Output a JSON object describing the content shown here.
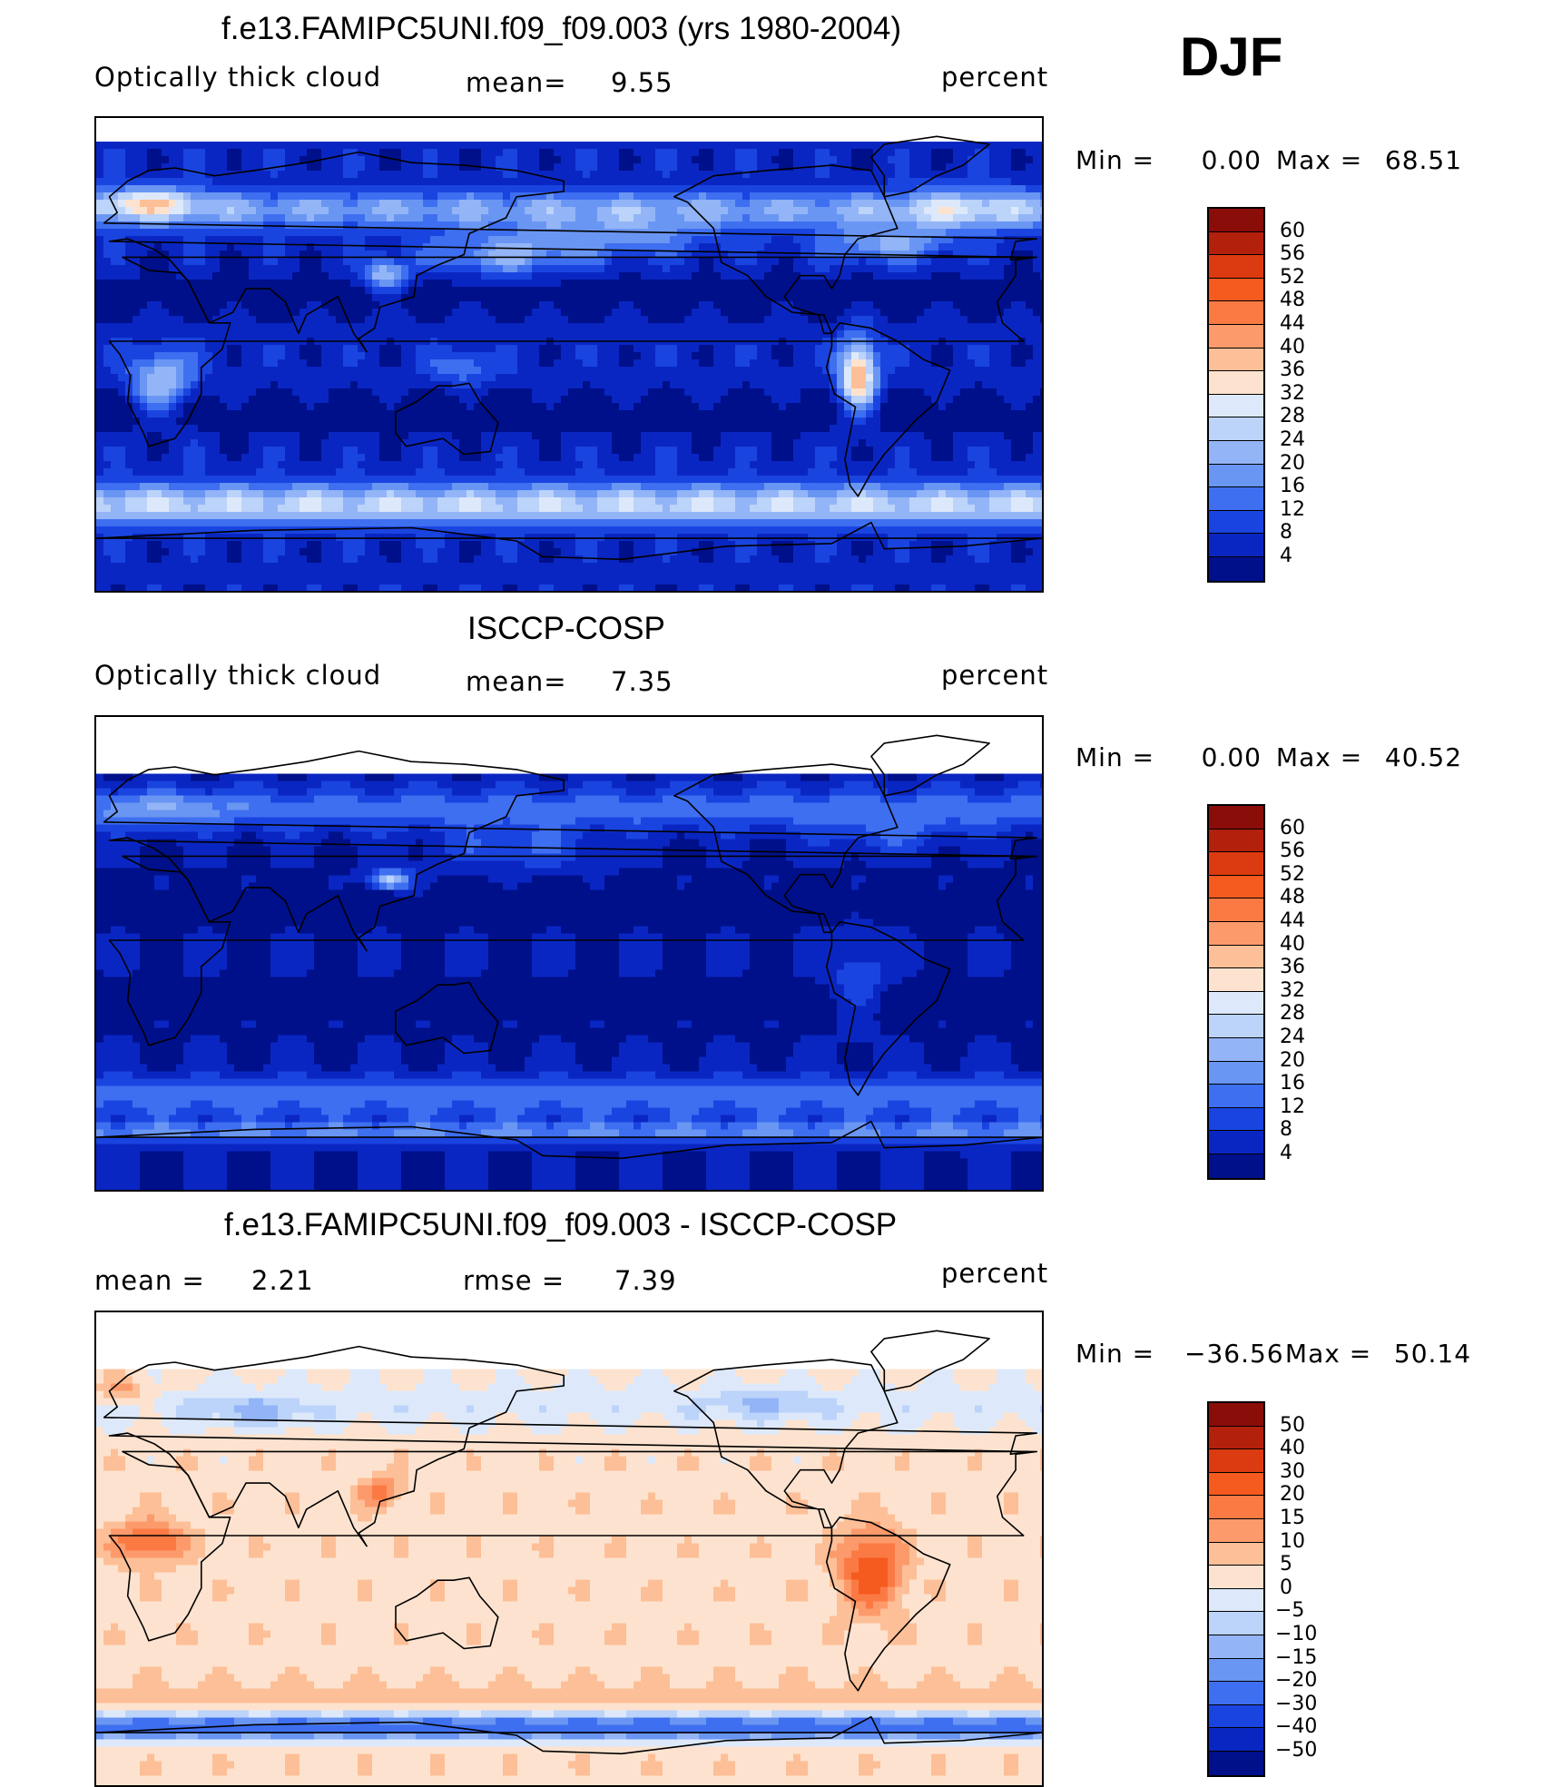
{
  "season": "DJF",
  "panels": [
    {
      "id": "model",
      "title": "f.e13.FAMIPC5UNI.f09_f09.003 (yrs 1980-2004)",
      "left_label": "Optically thick cloud",
      "mid_label": "mean=",
      "mid_value": "9.55",
      "right_label": "percent",
      "stats": {
        "min_label": "Min =",
        "min": "0.00",
        "max_label": "Max =",
        "max": "68.51"
      },
      "colorbar": {
        "levels": [
          "60",
          "56",
          "52",
          "48",
          "44",
          "40",
          "36",
          "32",
          "28",
          "24",
          "20",
          "16",
          "12",
          "8",
          "4"
        ],
        "colors": [
          "#8a0d0a",
          "#b3200c",
          "#dc3a10",
          "#f55a1f",
          "#fb7a44",
          "#fd9a6b",
          "#fdbf97",
          "#fde3cf",
          "#dde9fb",
          "#bcd3fa",
          "#93b5f7",
          "#6a96f3",
          "#3e6ff0",
          "#1a44e0",
          "#0a26c2",
          "#00108a"
        ]
      },
      "cmap": {
        "thresholds": [
          4,
          8,
          12,
          16,
          20,
          24,
          28,
          32,
          36,
          40,
          44,
          48,
          52,
          56,
          60
        ],
        "colors": [
          "#00108a",
          "#0a26c2",
          "#1a44e0",
          "#3e6ff0",
          "#6a96f3",
          "#93b5f7",
          "#bcd3fa",
          "#dde9fb",
          "#fde3cf",
          "#fdbf97",
          "#fd9a6b",
          "#fb7a44",
          "#f55a1f",
          "#dc3a10",
          "#b3200c",
          "#8a0d0a"
        ]
      },
      "data_top_fraction": 0.05
    },
    {
      "id": "obs",
      "title": "ISCCP-COSP",
      "left_label": "Optically thick cloud",
      "mid_label": "mean=",
      "mid_value": "7.35",
      "right_label": "percent",
      "stats": {
        "min_label": "Min =",
        "min": "0.00",
        "max_label": "Max =",
        "max": "40.52"
      },
      "colorbar": {
        "levels": [
          "60",
          "56",
          "52",
          "48",
          "44",
          "40",
          "36",
          "32",
          "28",
          "24",
          "20",
          "16",
          "12",
          "8",
          "4"
        ],
        "colors": [
          "#8a0d0a",
          "#b3200c",
          "#dc3a10",
          "#f55a1f",
          "#fb7a44",
          "#fd9a6b",
          "#fdbf97",
          "#fde3cf",
          "#dde9fb",
          "#bcd3fa",
          "#93b5f7",
          "#6a96f3",
          "#3e6ff0",
          "#1a44e0",
          "#0a26c2",
          "#00108a"
        ]
      },
      "cmap": {
        "thresholds": [
          4,
          8,
          12,
          16,
          20,
          24,
          28,
          32,
          36,
          40,
          44,
          48,
          52,
          56,
          60
        ],
        "colors": [
          "#00108a",
          "#0a26c2",
          "#1a44e0",
          "#3e6ff0",
          "#6a96f3",
          "#93b5f7",
          "#bcd3fa",
          "#dde9fb",
          "#fde3cf",
          "#fdbf97",
          "#fd9a6b",
          "#fb7a44",
          "#f55a1f",
          "#dc3a10",
          "#b3200c",
          "#8a0d0a"
        ]
      },
      "data_top_fraction": 0.12
    },
    {
      "id": "diff",
      "title": "f.e13.FAMIPC5UNI.f09_f09.003 - ISCCP-COSP",
      "left_label": "mean =",
      "left_value": "2.21",
      "mid_label": "rmse =",
      "mid_value": "7.39",
      "right_label": "percent",
      "stats": {
        "min_label": "Min =",
        "min": "−36.56",
        "max_label": "Max =",
        "max": "50.14"
      },
      "colorbar": {
        "levels": [
          "50",
          "40",
          "30",
          "20",
          "15",
          "10",
          "5",
          "0",
          "−5",
          "−10",
          "−15",
          "−20",
          "−30",
          "−40",
          "−50"
        ],
        "colors": [
          "#8a0d0a",
          "#b3200c",
          "#dc3a10",
          "#f55a1f",
          "#fb7a44",
          "#fd9a6b",
          "#fdbf97",
          "#fde3cf",
          "#dde9fb",
          "#bcd3fa",
          "#93b5f7",
          "#6a96f3",
          "#3e6ff0",
          "#1a44e0",
          "#0a26c2",
          "#00108a"
        ]
      },
      "cmap": {
        "thresholds": [
          -50,
          -40,
          -30,
          -20,
          -15,
          -10,
          -5,
          0,
          5,
          10,
          15,
          20,
          30,
          40,
          50
        ],
        "colors": [
          "#00108a",
          "#0a26c2",
          "#1a44e0",
          "#3e6ff0",
          "#6a96f3",
          "#93b5f7",
          "#bcd3fa",
          "#dde9fb",
          "#fde3cf",
          "#fdbf97",
          "#fd9a6b",
          "#fb7a44",
          "#f55a1f",
          "#dc3a10",
          "#b3200c",
          "#8a0d0a"
        ]
      },
      "data_top_fraction": 0.12
    }
  ]
}
